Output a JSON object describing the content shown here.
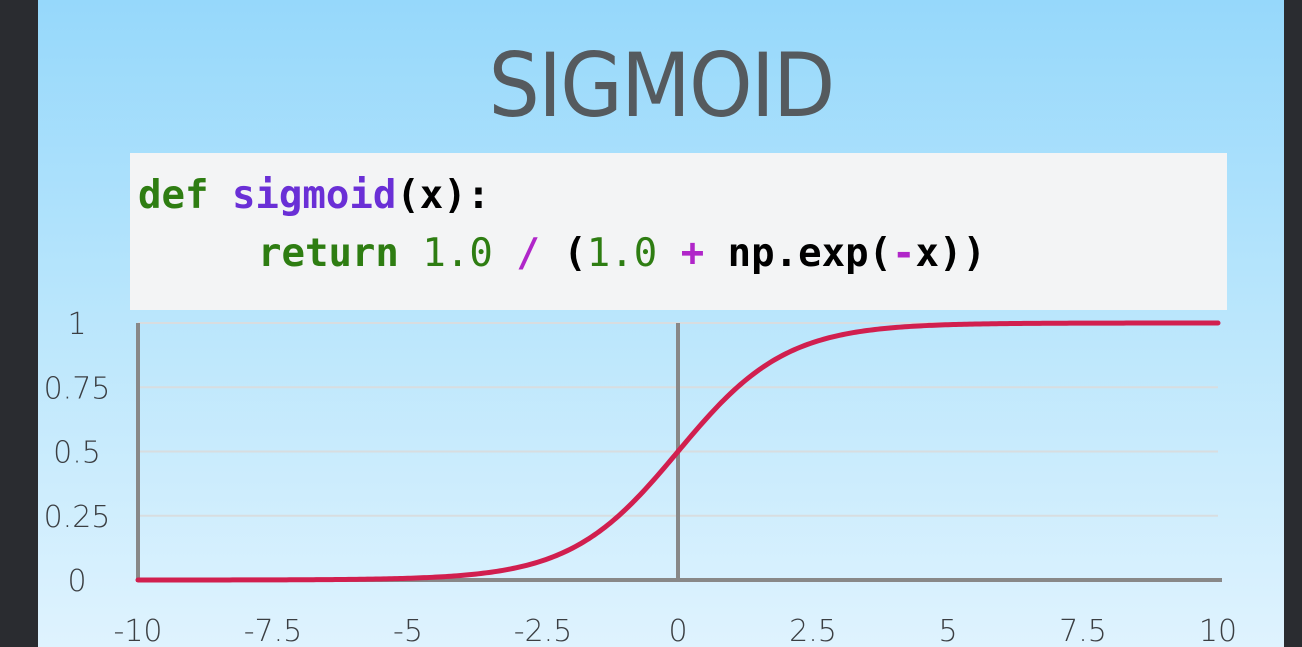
{
  "title": "SIGMOID",
  "code": {
    "line1": {
      "kw": "def",
      "fn": "sigmoid",
      "rest": "(x):"
    },
    "line2": {
      "kw": "return",
      "num1": "1.0",
      "op1": "/",
      "open": "(",
      "num2": "1.0",
      "op2": "+",
      "call": "np.exp(",
      "op3": "-",
      "tail": "x))"
    }
  },
  "colors": {
    "curve": "#d11f4f",
    "axis": "#888888",
    "grid": "#d8dde0",
    "keyword": "#2e7d12",
    "function": "#6a2fd6",
    "operator": "#b026c9"
  },
  "chart_data": {
    "type": "line",
    "title": "",
    "xlabel": "",
    "ylabel": "",
    "xlim": [
      -10,
      10
    ],
    "ylim": [
      0,
      1
    ],
    "grid": true,
    "x_ticks": [
      -10,
      -7.5,
      -5,
      -2.5,
      0,
      2.5,
      5,
      7.5,
      10
    ],
    "x_tick_labels": [
      "-10",
      "-7.5",
      "-5",
      "-2.5",
      "0",
      "2.5",
      "5",
      "7.5",
      "10"
    ],
    "y_ticks": [
      0,
      0.25,
      0.5,
      0.75,
      1
    ],
    "y_tick_labels": [
      "0",
      "0.25",
      "0.5",
      "0.75",
      "1"
    ],
    "series": [
      {
        "function": "1 / (1 + exp(-x))",
        "x": [
          -10,
          -9,
          -8,
          -7,
          -6,
          -5,
          -4,
          -3,
          -2.5,
          -2,
          -1.5,
          -1,
          -0.5,
          0,
          0.5,
          1,
          1.5,
          2,
          2.5,
          3,
          4,
          5,
          6,
          7,
          8,
          9,
          10
        ],
        "y": [
          4.54e-05,
          0.000123,
          0.000335,
          0.000911,
          0.00247,
          0.00669,
          0.018,
          0.0474,
          0.0759,
          0.1192,
          0.1824,
          0.2689,
          0.3775,
          0.5,
          0.6225,
          0.7311,
          0.8176,
          0.8808,
          0.9241,
          0.9526,
          0.982,
          0.9933,
          0.9975,
          0.9991,
          0.99966,
          0.99988,
          0.99995
        ]
      }
    ]
  }
}
